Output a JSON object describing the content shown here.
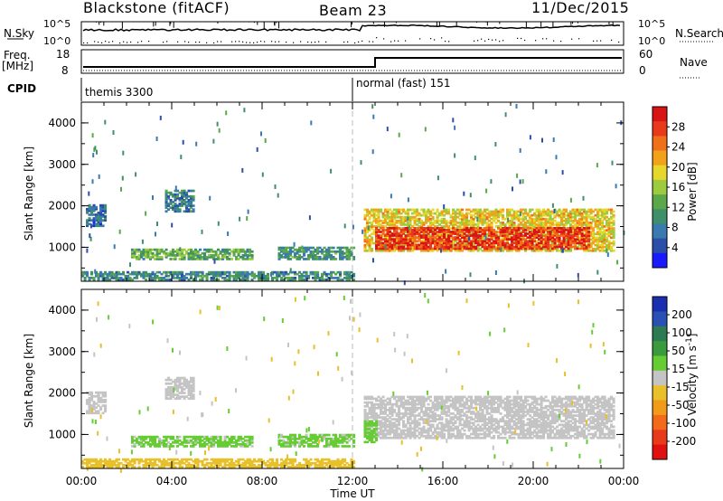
{
  "header": {
    "station": "Blackstone (fitACF)",
    "beam": "Beam 23",
    "date": "11/Dec/2015"
  },
  "top_panels": {
    "nsky_label": "N.Sky",
    "nsky_ticks": [
      "10^5",
      "10^0"
    ],
    "nsearch_label": "N.Search",
    "nsearch_ticks": [
      "10^5",
      "10^0"
    ],
    "freq_label": "Freq.",
    "freq_unit": "[MHz]",
    "freq_ticks": [
      "18",
      "8"
    ],
    "nave_label": "Nave",
    "nave_ticks": [
      "60",
      "0"
    ],
    "cpid_label": "CPID",
    "cpid_segments": [
      {
        "label": "themis 3300",
        "start_hour": 0
      },
      {
        "label": "normal (fast) 151",
        "start_hour": 12
      }
    ]
  },
  "colorbars": {
    "power": {
      "label": "Power [dB]",
      "ticks": [
        "4",
        "8",
        "12",
        "16",
        "20",
        "24",
        "28"
      ],
      "colors": [
        "#1a1aff",
        "#2b4fa8",
        "#3a7ab0",
        "#3f8f6a",
        "#5aa84a",
        "#9ccc3e",
        "#e6d82a",
        "#f2a21a",
        "#f0701a",
        "#e83a1a",
        "#d81414"
      ]
    },
    "velocity": {
      "label": "Velocity [m s",
      "label_sup": "-1",
      "label_close": "]",
      "ticks": [
        "200",
        "100",
        "50",
        "15",
        "-15",
        "-50",
        "-100",
        "-200"
      ],
      "colors": [
        "#1a2fb0",
        "#2a4fb5",
        "#2e7a52",
        "#3a9a3e",
        "#66cc33",
        "#c4c4c4",
        "#e8c02a",
        "#f29a1a",
        "#f26a1a",
        "#e83a1a",
        "#e01010"
      ]
    }
  },
  "chart_data": [
    {
      "type": "heatmap",
      "title": "Power",
      "xlabel": "Time UT",
      "ylabel": "Slant Range [km]",
      "x_ticks": [
        "00:00",
        "04:00",
        "08:00",
        "12:00",
        "16:00",
        "20:00",
        "00:00"
      ],
      "y_ticks": [
        "1000",
        "2000",
        "3000",
        "4000"
      ],
      "xlim_hours": [
        0,
        24
      ],
      "ylim_km": [
        180,
        4500
      ],
      "cpid_change_hour": 12,
      "echo_regions": [
        {
          "t_start": 0.2,
          "t_end": 1.0,
          "range_low": 1500,
          "range_high": 2000,
          "power_db": 7
        },
        {
          "t_start": 3.7,
          "t_end": 4.9,
          "range_low": 1850,
          "range_high": 2350,
          "power_db": 8
        },
        {
          "t_start": 2.2,
          "t_end": 7.5,
          "range_low": 700,
          "range_high": 950,
          "power_db": 12
        },
        {
          "t_start": 8.7,
          "t_end": 12.0,
          "range_low": 700,
          "range_high": 1000,
          "power_db": 10
        },
        {
          "t_start": 0.0,
          "t_end": 12.0,
          "range_low": 200,
          "range_high": 400,
          "power_db": 9
        },
        {
          "t_start": 12.5,
          "t_end": 23.6,
          "range_low": 900,
          "range_high": 1900,
          "power_db": 18
        },
        {
          "t_start": 13.0,
          "t_end": 22.5,
          "range_low": 950,
          "range_high": 1450,
          "power_db": 26
        }
      ]
    },
    {
      "type": "heatmap",
      "title": "Velocity",
      "xlabel": "Time UT",
      "ylabel": "Slant Range [km]",
      "x_ticks": [
        "00:00",
        "04:00",
        "08:00",
        "12:00",
        "16:00",
        "20:00",
        "00:00"
      ],
      "y_ticks": [
        "1000",
        "2000",
        "3000",
        "4000"
      ],
      "xlim_hours": [
        0,
        24
      ],
      "ylim_km": [
        180,
        4500
      ],
      "cpid_change_hour": 12,
      "echo_regions": [
        {
          "t_start": 0.2,
          "t_end": 1.0,
          "range_low": 1500,
          "range_high": 2000,
          "velocity": 0
        },
        {
          "t_start": 3.7,
          "t_end": 4.9,
          "range_low": 1850,
          "range_high": 2350,
          "velocity": 0
        },
        {
          "t_start": 2.2,
          "t_end": 7.5,
          "range_low": 700,
          "range_high": 950,
          "velocity": 30
        },
        {
          "t_start": 8.7,
          "t_end": 12.0,
          "range_low": 700,
          "range_high": 1000,
          "velocity": 30
        },
        {
          "t_start": 0.0,
          "t_end": 12.0,
          "range_low": 200,
          "range_high": 400,
          "velocity": -40
        },
        {
          "t_start": 12.5,
          "t_end": 23.6,
          "range_low": 900,
          "range_high": 1900,
          "velocity": 0
        },
        {
          "t_start": 12.5,
          "t_end": 13.0,
          "range_low": 800,
          "range_high": 1300,
          "velocity": 40
        }
      ]
    }
  ]
}
